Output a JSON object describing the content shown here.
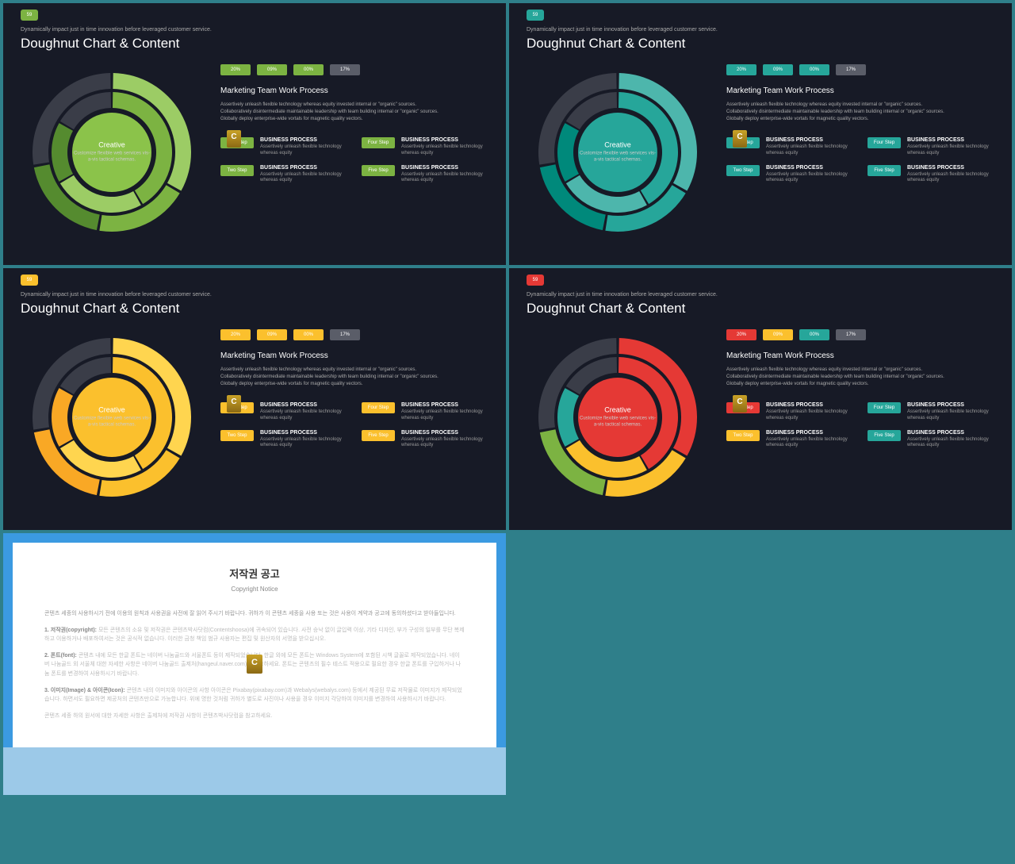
{
  "common": {
    "page_num": "59",
    "subtitle": "Dynamically impact just in time innovation before leveraged customer service.",
    "title": "Doughnut Chart & Content",
    "center_title": "Creative",
    "center_sub": "Customize flexible web services vis-a-vis tactical schemas.",
    "section_title": "Marketing Team Work Process",
    "paragraph": "Assertively unleash flexible technology whereas equity invested internal or \"organic\" sources. Collaboratively disintermediate maintainable leadership with team building internal or \"organic\" sources. Globally deploy enterprise-wide vortals for magnetic quality vectors.",
    "pct_labels": [
      "20%",
      "09%",
      "00%",
      "17%"
    ],
    "step_labels": [
      "One Step",
      "Two Step",
      "Four Step",
      "Five Step"
    ],
    "step_title": "BUSINESS PROCESS",
    "step_body": "Assertively unleash flexible technology whereas equity",
    "gray": "#5a5d68",
    "chart": {
      "type": "doughnut",
      "bg": "#171a26",
      "track": "#3a3d48",
      "outer": {
        "r_out": 100,
        "r_in": 80,
        "gap": 2
      },
      "inner": {
        "r_out": 76,
        "r_in": 56,
        "gap": 2
      },
      "outer_angles": [
        [
          -90,
          30
        ],
        [
          30,
          100
        ],
        [
          100,
          170
        ],
        [
          170,
          270
        ]
      ],
      "inner_angles": [
        [
          -90,
          60
        ],
        [
          60,
          150
        ],
        [
          150,
          210
        ],
        [
          210,
          270
        ]
      ]
    }
  },
  "slides": [
    {
      "accent": "#7cb342",
      "accent2": "#9ccc65",
      "accent3": "#558b2f",
      "center_bg": "#8bc34a",
      "btn_colors": [
        "#7cb342",
        "#7cb342",
        "#7cb342",
        "#5a5d68"
      ],
      "step_btn": [
        "#7cb342",
        "#7cb342",
        "#7cb342",
        "#7cb342"
      ],
      "outer_fills": [
        "#9ccc65",
        "#7cb342",
        "#558b2f",
        "#3a3d48"
      ],
      "inner_fills": [
        "#7cb342",
        "#9ccc65",
        "#558b2f",
        "#3a3d48"
      ]
    },
    {
      "accent": "#26a69a",
      "accent2": "#4db6ac",
      "accent3": "#00897b",
      "center_bg": "#26a69a",
      "btn_colors": [
        "#26a69a",
        "#26a69a",
        "#26a69a",
        "#5a5d68"
      ],
      "step_btn": [
        "#26a69a",
        "#26a69a",
        "#26a69a",
        "#26a69a"
      ],
      "outer_fills": [
        "#4db6ac",
        "#26a69a",
        "#00897b",
        "#3a3d48"
      ],
      "inner_fills": [
        "#26a69a",
        "#4db6ac",
        "#00897b",
        "#3a3d48"
      ]
    },
    {
      "accent": "#fbc02d",
      "accent2": "#ffd54f",
      "accent3": "#f9a825",
      "center_bg": "#fbc02d",
      "btn_colors": [
        "#fbc02d",
        "#fbc02d",
        "#fbc02d",
        "#5a5d68"
      ],
      "step_btn": [
        "#fbc02d",
        "#fbc02d",
        "#fbc02d",
        "#fbc02d"
      ],
      "outer_fills": [
        "#ffd54f",
        "#fbc02d",
        "#f9a825",
        "#3a3d48"
      ],
      "inner_fills": [
        "#fbc02d",
        "#ffd54f",
        "#f9a825",
        "#3a3d48"
      ]
    },
    {
      "accent": "#e53935",
      "accent2": "#fbc02d",
      "accent3": "#26a69a",
      "center_bg": "#e53935",
      "btn_colors": [
        "#e53935",
        "#fbc02d",
        "#26a69a",
        "#5a5d68"
      ],
      "step_btn": [
        "#e53935",
        "#fbc02d",
        "#26a69a",
        "#26a69a"
      ],
      "outer_fills": [
        "#e53935",
        "#fbc02d",
        "#7cb342",
        "#3a3d48"
      ],
      "inner_fills": [
        "#e53935",
        "#fbc02d",
        "#26a69a",
        "#3a3d48"
      ]
    }
  ],
  "copyright": {
    "title_ko": "저작권 공고",
    "title_en": "Copyright Notice",
    "p0": "콘텐츠 세종의 사용하시기 전에 이용의 원칙과 사용권을 사전에 잘 읽어 주시기 바랍니다. 귀하가 이 콘텐츠 세종을 사용 또는 것은 사용이 계약과 공고에 동의하셨다고 받아들입니다.",
    "h1": "1. 저작권(copyright):",
    "p1": "모든 콘텐츠의 소유 및 저작권은 콘텐츠박사닷컴(Contentshoosa)에 귀속되어 있습니다. 사전 승낙 없이 글입력 이상, 기타 디자인, 부가 구성의 일부를 무단 복제하고 이용하거나 배포하여서는 것은 공식적 없습니다. 이러한 금청 책임 범규 사용자는 편집 및 원산자의 서명을 받으십시오.",
    "h2": "2. 폰트(font):",
    "p2": "콘텐츠 내에 모든 한글 폰트는 네이버 나눔골드와 서울폰트 등이 제작되었습니다. 한글 외에 모든 폰트는 Windows System에 포함된 시책 글꼴로 제작되었습니다. 네이버 나눔골드 외 서울체 대한 자세한 사항은 네이버 나눔골드 출제처(hangeul.naver.com)를 참고하세요. 폰트는 콘텐츠의 필수 테스트 적용으로 필요한 경우 한글 폰트를 구입하거나 나눔 폰트를 변경하여 사용하시기 바랍니다.",
    "h3": "3. 이미지(Image) & 아이콘(Icon):",
    "p3": "콘텐츠 내의 이미지와 아이콘의 사항 아이콘은 Pixabay(pixabay.com)과 Webalys(webalys.com) 등에서 제공된 무료 저작물로 이미지가 제작되었습니다. 하면서도 필요하면 제공처의 콘텐츠만으로 가능합니다. 위에 명한 것처럼 귀하가 별도로 사진이나 사용을 경우 이미지 각당하여 이미지를 변경하여 사용하시기 바랍니다.",
    "p4": "콘텐츠 세종 하의 원서에 대한 자세한 사항은 출제처에 저작권 사항이 콘텐츠박사닷컴을 참고하세요."
  }
}
